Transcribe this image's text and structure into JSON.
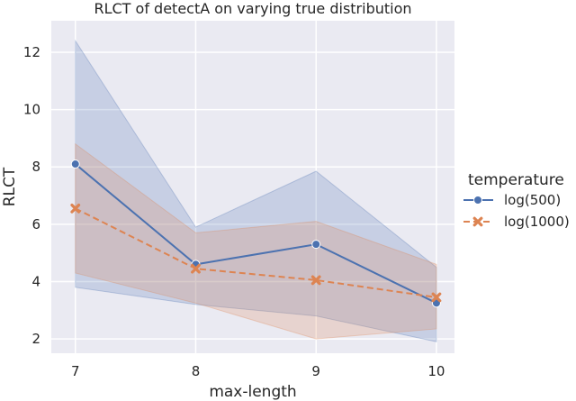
{
  "chart_data": {
    "type": "line",
    "title": "RLCT of detectA on varying true distribution",
    "xlabel": "max-length",
    "ylabel": "RLCT",
    "x": [
      7,
      8,
      9,
      10
    ],
    "xlim": [
      6.8,
      10.15
    ],
    "ylim": [
      1.5,
      13.1
    ],
    "yticks": [
      2,
      4,
      6,
      8,
      10,
      12
    ],
    "grid": true,
    "legend": {
      "title": "temperature",
      "placement": "right"
    },
    "series": [
      {
        "name": "log(500)",
        "color": "#4c72b0",
        "marker": "circle",
        "linestyle": "solid",
        "values": [
          8.1,
          4.6,
          5.3,
          3.25
        ],
        "ci_low": [
          3.8,
          3.2,
          2.8,
          1.9
        ],
        "ci_high": [
          12.4,
          5.9,
          7.85,
          4.5
        ]
      },
      {
        "name": "log(1000)",
        "color": "#dd8452",
        "marker": "x",
        "linestyle": "dashed",
        "values": [
          6.55,
          4.45,
          4.05,
          3.45
        ],
        "ci_low": [
          4.3,
          3.25,
          2.0,
          2.35
        ],
        "ci_high": [
          8.8,
          5.7,
          6.1,
          4.6
        ]
      }
    ]
  }
}
